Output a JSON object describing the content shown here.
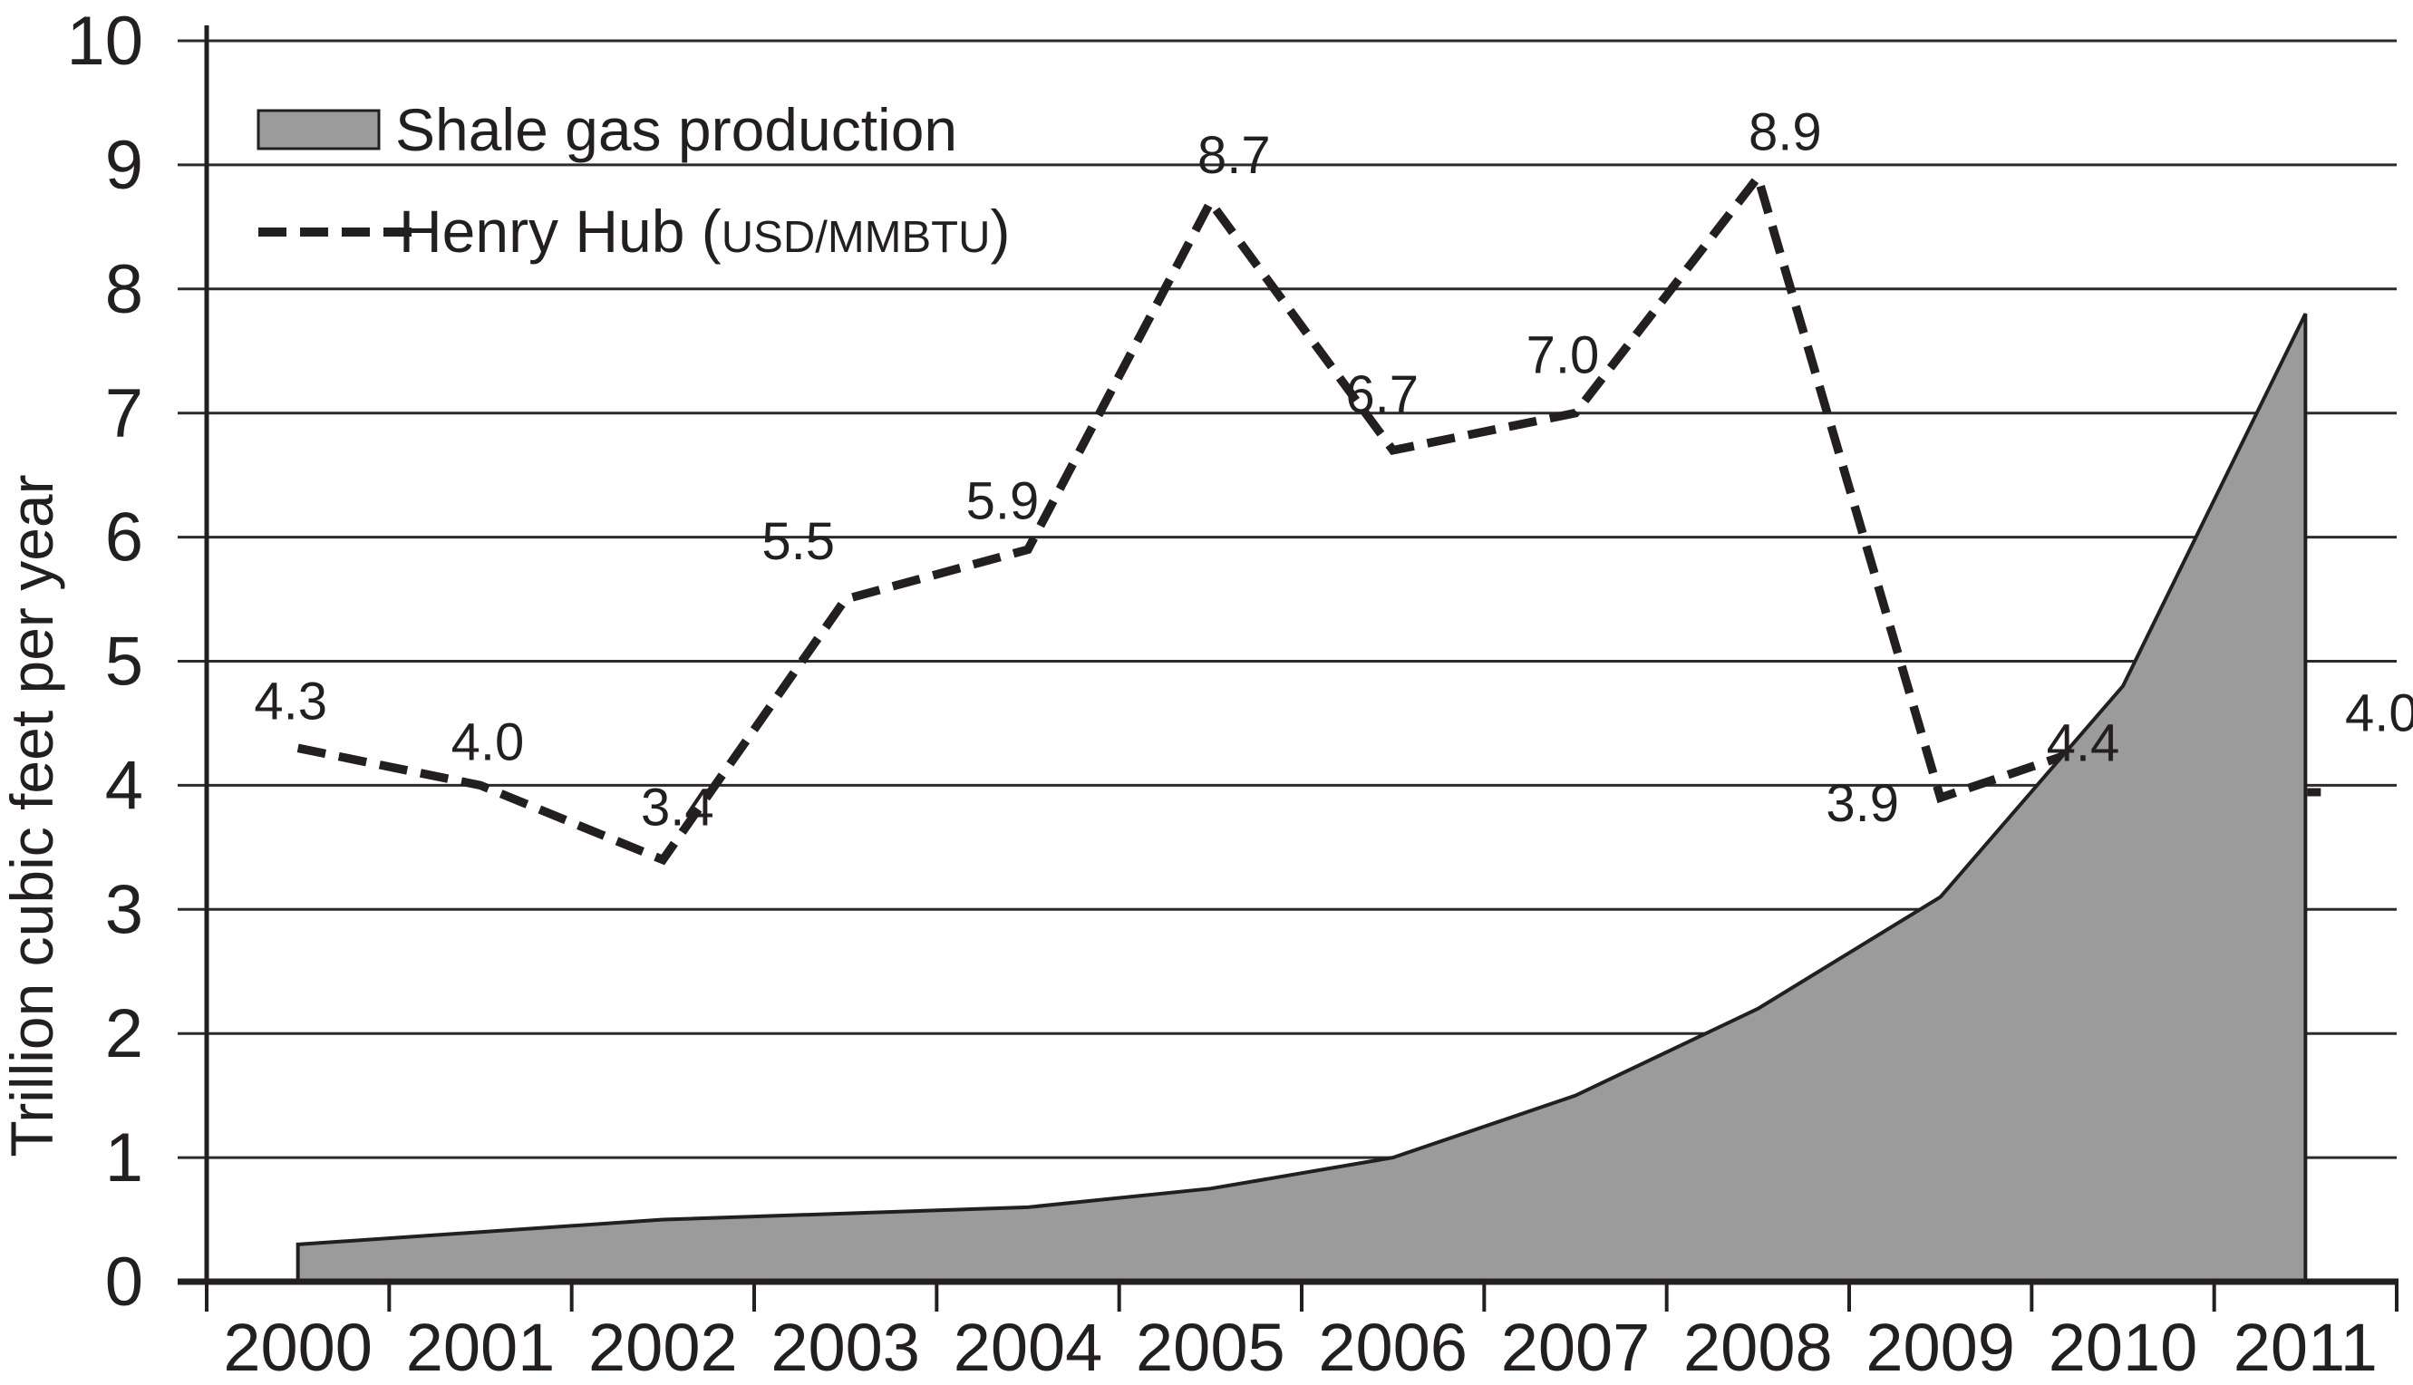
{
  "figure": {
    "background": "#ffffff",
    "ink_color": "#231f20",
    "area_fill": "#9b9b9b",
    "gridline_color": "#2b2b2b"
  },
  "legend": {
    "shale_label": "Shale gas production",
    "henry_prefix": "Henry Hub (",
    "henry_unit": "USD/MMBTU",
    "henry_suffix": ")"
  },
  "y_axis": {
    "title": "Trillion cubic feet per year",
    "tick_labels": [
      "0",
      "1",
      "2",
      "3",
      "4",
      "5",
      "6",
      "7",
      "8",
      "9",
      "10"
    ]
  },
  "x_axis": {
    "tick_labels": [
      "2000",
      "2001",
      "2002",
      "2003",
      "2004",
      "2005",
      "2006",
      "2007",
      "2008",
      "2009",
      "2010",
      "2011"
    ]
  },
  "chart_data": {
    "type": "area",
    "categories": [
      "2000",
      "2001",
      "2002",
      "2003",
      "2004",
      "2005",
      "2006",
      "2007",
      "2008",
      "2009",
      "2010",
      "2011"
    ],
    "series": [
      {
        "name": "Shale gas production",
        "kind": "area",
        "color": "#9b9b9b",
        "values": [
          0.3,
          0.4,
          0.5,
          0.55,
          0.6,
          0.75,
          1.0,
          1.5,
          2.2,
          3.1,
          4.8,
          7.8
        ]
      },
      {
        "name": "Henry Hub (USD/MMBTU)",
        "kind": "dashed-line",
        "color": "#231f20",
        "values": [
          4.3,
          4.0,
          3.4,
          5.5,
          5.9,
          8.7,
          6.7,
          7.0,
          8.9,
          3.9,
          4.4,
          4.0
        ],
        "point_labels": [
          "4.3",
          "4.0",
          "3.4",
          "5.5",
          "5.9",
          "8.7",
          "6.7",
          "7.0",
          "8.9",
          "3.9",
          "4.4",
          "4.0"
        ]
      }
    ],
    "title": "",
    "xlabel": "",
    "ylabel": "Trillion cubic feet per year",
    "ylim": [
      0,
      10
    ],
    "yticks": [
      0,
      1,
      2,
      3,
      4,
      5,
      6,
      7,
      8,
      9,
      10
    ],
    "grid": true,
    "legend_position": "top-left"
  }
}
